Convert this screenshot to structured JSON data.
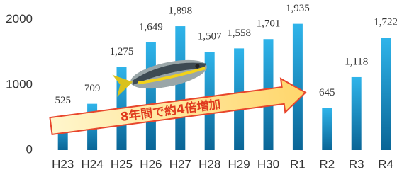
{
  "chart_data": {
    "type": "bar",
    "categories": [
      "H23",
      "H24",
      "H25",
      "H26",
      "H27",
      "H28",
      "H29",
      "H30",
      "R1",
      "R2",
      "R3",
      "R4"
    ],
    "values": [
      525,
      709,
      1275,
      1649,
      1898,
      1507,
      1558,
      1701,
      1935,
      645,
      1118,
      1722
    ],
    "value_labels": [
      "525",
      "709",
      "1,275",
      "1,649",
      "1,898",
      "1,507",
      "1,558",
      "1,701",
      "1,935",
      "645",
      "1,118",
      "1,722"
    ],
    "color": "#1e9ad6",
    "ylim": [
      0,
      2300
    ],
    "yticks": [
      0,
      1000,
      2000
    ],
    "grid": false,
    "annotation": "8年間で約4倍増加"
  }
}
